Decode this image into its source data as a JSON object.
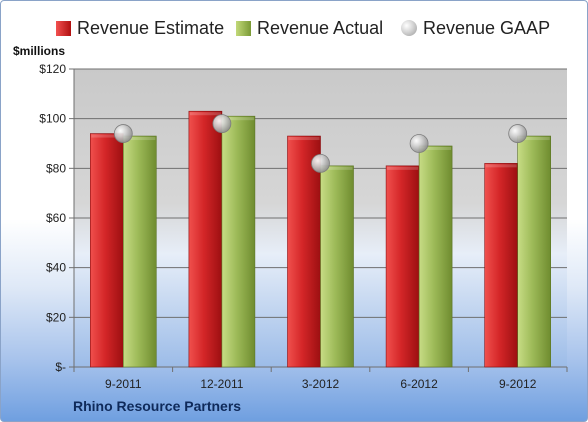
{
  "units_label": "$millions",
  "company": "Rhino Resource Partners",
  "legend": [
    {
      "key": "est",
      "label": "Revenue Estimate"
    },
    {
      "key": "act",
      "label": "Revenue Actual"
    },
    {
      "key": "gaap",
      "label": "Revenue GAAP"
    }
  ],
  "colors": {
    "estimate": "#c8191b",
    "actual": "#8eae47",
    "gaap": "#b8b8b8"
  },
  "chart_data": {
    "type": "bar",
    "categories": [
      "9-2011",
      "12-2011",
      "3-2012",
      "6-2012",
      "9-2012"
    ],
    "series": [
      {
        "name": "Revenue Estimate",
        "values": [
          94,
          103,
          93,
          81,
          82
        ]
      },
      {
        "name": "Revenue Actual",
        "values": [
          93,
          101,
          81,
          89,
          93
        ]
      },
      {
        "name": "Revenue GAAP",
        "values": [
          94,
          98,
          82,
          90,
          94
        ]
      }
    ],
    "ylabel": "$millions",
    "ylim": [
      0,
      120
    ],
    "yticks": [
      0,
      20,
      40,
      60,
      80,
      100,
      120
    ],
    "ytick_labels": [
      "$-",
      "$20",
      "$40",
      "$60",
      "$80",
      "$100",
      "$120"
    ],
    "grid": true,
    "legend_position": "top"
  }
}
